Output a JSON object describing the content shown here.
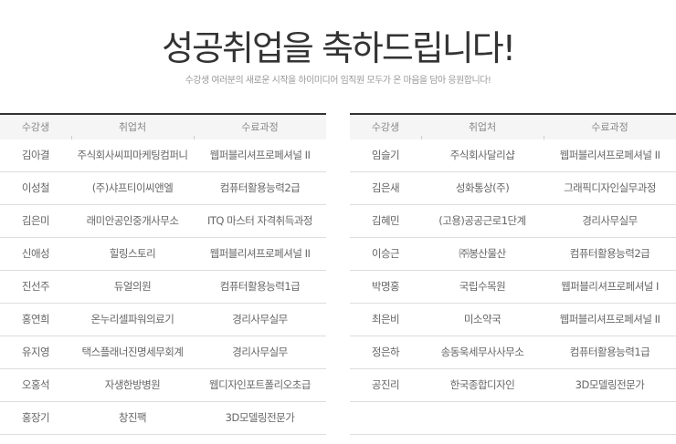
{
  "title": "성공취업을 축하드립니다!",
  "subtitle": "수강생 여러분의 새로운 시작을 하이미디어 임직원 모두가 온 마음을 담아 응원합니다!",
  "headers": [
    "수강생",
    "취업처",
    "수료과정"
  ],
  "left_rows": [
    [
      "김아결",
      "주식회사씨피마케팅컴퍼니",
      "웹퍼블리셔프로페셔널 II"
    ],
    [
      "이성철",
      "(주)샤프티이씨앤엘",
      "컴퓨터활용능력2급"
    ],
    [
      "김은미",
      "래미안공인중개사무소",
      "ITQ 마스터 자격취득과정"
    ],
    [
      "신애성",
      "힐링스토리",
      "웹퍼블리셔프로페셔널 II"
    ],
    [
      "진선주",
      "듀얼의원",
      "컴퓨터활용능력1급"
    ],
    [
      "홍연희",
      "온누리셀파워의료기",
      "경리사무실무"
    ],
    [
      "유지영",
      "택스플래너진명세무회계",
      "경리사무실무"
    ],
    [
      "오홍석",
      "자생한방병원",
      "웹디자인포트폴리오초급"
    ],
    [
      "홍장기",
      "창진팩",
      "3D모델링전문가"
    ]
  ],
  "right_rows": [
    [
      "임슬기",
      "주식회사달리샵",
      "웹퍼블리셔프로페셔널 II"
    ],
    [
      "김은새",
      "성화통상(주)",
      "그래픽디자인실무과정"
    ],
    [
      "김혜민",
      "(고용)공공근로1단계",
      "경리사무실무"
    ],
    [
      "이승근",
      "㈜봉산물산",
      "컴퓨터활용능력2급"
    ],
    [
      "박명홍",
      "국립수목원",
      "웹퍼블리셔프로페셔널 I"
    ],
    [
      "최은비",
      "미소약국",
      "웹퍼블리셔프로페셔널 II"
    ],
    [
      "정은하",
      "송동욱세무사사무소",
      "컴퓨터활용능력1급"
    ],
    [
      "공진리",
      "한국종합디자인",
      "3D모델링전문가"
    ],
    [
      "",
      "",
      ""
    ]
  ]
}
